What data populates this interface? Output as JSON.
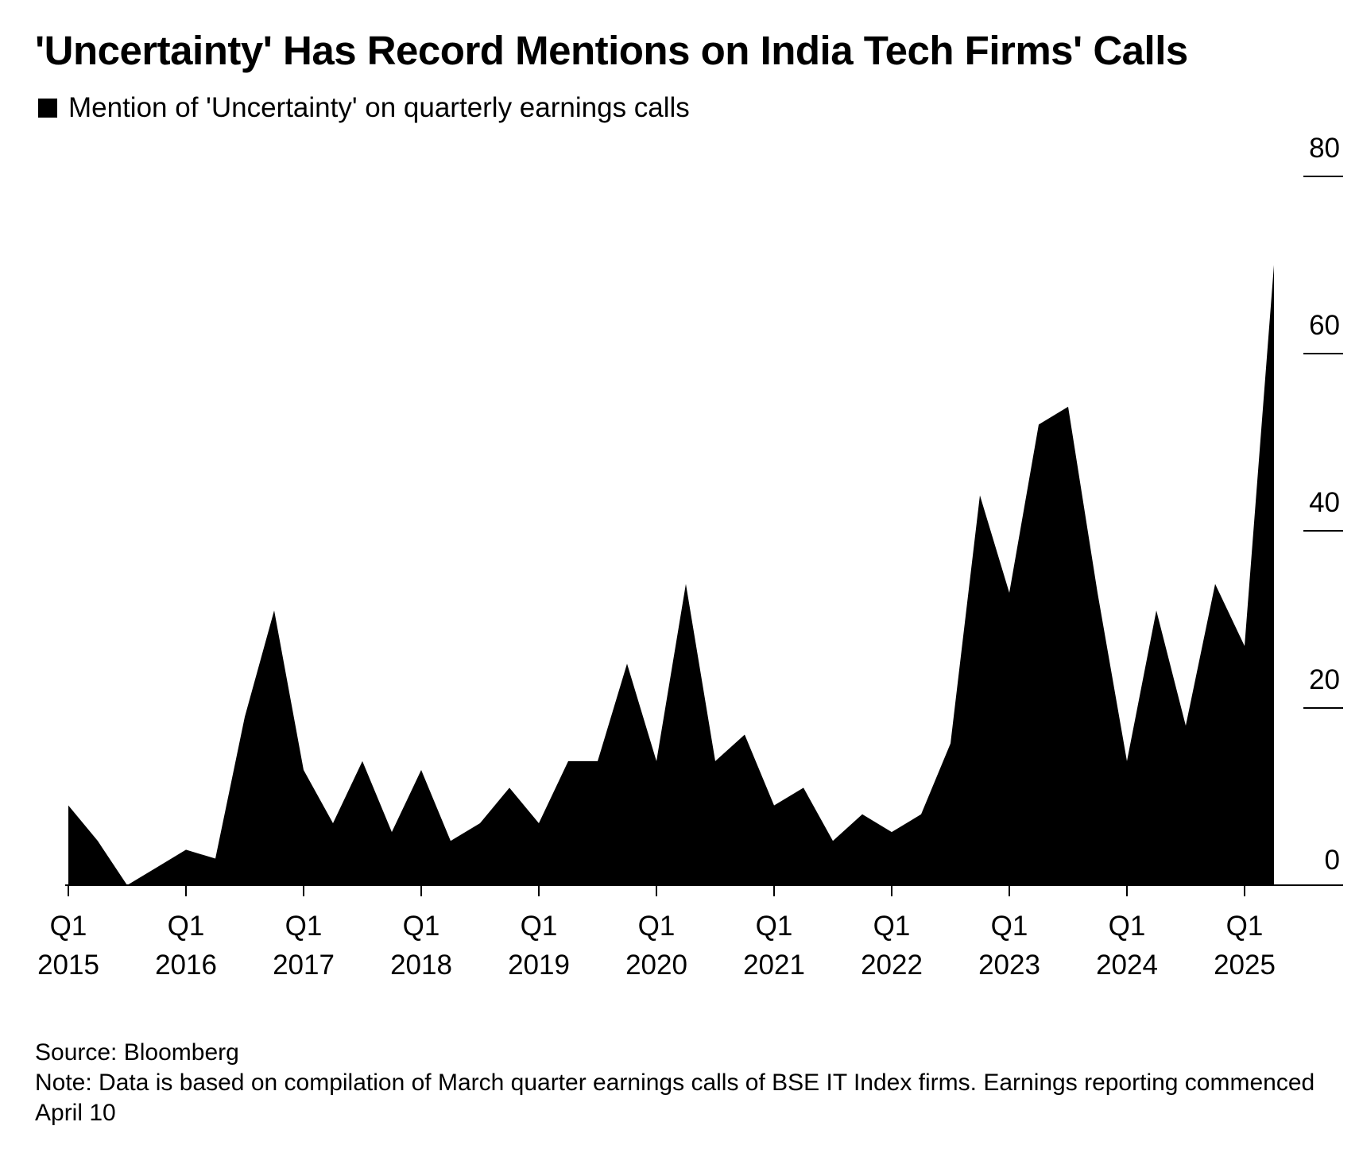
{
  "chart_data": {
    "type": "area",
    "title": "'Uncertainty' Has Record Mentions on India Tech Firms' Calls",
    "series": [
      {
        "name": "Mention of 'Uncertainty' on quarterly earnings calls",
        "color": "#000000",
        "values": [
          9,
          5,
          0,
          2,
          4,
          3,
          19,
          31,
          13,
          7,
          14,
          6,
          13,
          5,
          7,
          11,
          7,
          14,
          14,
          25,
          14,
          34,
          14,
          17,
          9,
          11,
          5,
          8,
          6,
          8,
          16,
          44,
          33,
          52,
          54,
          33,
          14,
          31,
          18,
          34,
          27,
          70
        ]
      }
    ],
    "x": [
      "Q1 2015",
      "Q2 2015",
      "Q3 2015",
      "Q4 2015",
      "Q1 2016",
      "Q2 2016",
      "Q3 2016",
      "Q4 2016",
      "Q1 2017",
      "Q2 2017",
      "Q3 2017",
      "Q4 2017",
      "Q1 2018",
      "Q2 2018",
      "Q3 2018",
      "Q4 2018",
      "Q1 2019",
      "Q2 2019",
      "Q3 2019",
      "Q4 2019",
      "Q1 2020",
      "Q2 2020",
      "Q3 2020",
      "Q4 2020",
      "Q1 2021",
      "Q2 2021",
      "Q3 2021",
      "Q4 2021",
      "Q1 2022",
      "Q2 2022",
      "Q3 2022",
      "Q4 2022",
      "Q1 2023",
      "Q2 2023",
      "Q3 2023",
      "Q4 2023",
      "Q1 2024",
      "Q2 2024",
      "Q3 2024",
      "Q4 2024",
      "Q1 2025",
      "Q2 2025"
    ],
    "x_tick_labels": [
      {
        "line1": "Q1",
        "line2": "2015"
      },
      {
        "line1": "Q1",
        "line2": "2016"
      },
      {
        "line1": "Q1",
        "line2": "2017"
      },
      {
        "line1": "Q1",
        "line2": "2018"
      },
      {
        "line1": "Q1",
        "line2": "2019"
      },
      {
        "line1": "Q1",
        "line2": "2020"
      },
      {
        "line1": "Q1",
        "line2": "2021"
      },
      {
        "line1": "Q1",
        "line2": "2022"
      },
      {
        "line1": "Q1",
        "line2": "2023"
      },
      {
        "line1": "Q1",
        "line2": "2024"
      },
      {
        "line1": "Q1",
        "line2": "2025"
      }
    ],
    "y_ticks": [
      0,
      20,
      40,
      60,
      80
    ],
    "ylim": [
      0,
      80
    ],
    "y_axis_side": "right",
    "grid": false,
    "legend": "top-left"
  },
  "footer": {
    "source": "Source: Bloomberg",
    "note": "Note: Data is based on compilation of March quarter earnings calls of BSE IT Index firms. Earnings reporting commenced April 10"
  }
}
